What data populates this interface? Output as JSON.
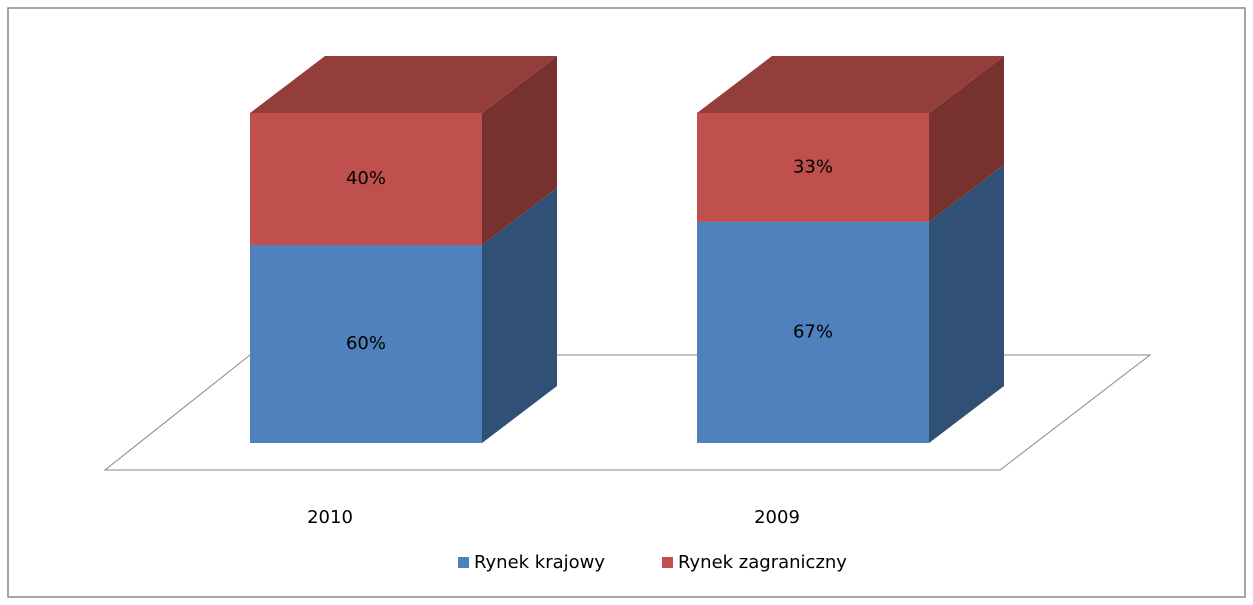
{
  "chart_data": {
    "type": "bar3d_stacked",
    "categories": [
      "2010",
      "2009"
    ],
    "series": [
      {
        "name": "Rynek krajowy",
        "color": "#4f81bd",
        "values": [
          60,
          67
        ],
        "value_labels": [
          "60%",
          "67%"
        ]
      },
      {
        "name": "Rynek zagraniczny",
        "color": "#c0504d",
        "values": [
          40,
          33
        ],
        "value_labels": [
          "40%",
          "33%"
        ]
      }
    ],
    "legend": "bottom"
  }
}
